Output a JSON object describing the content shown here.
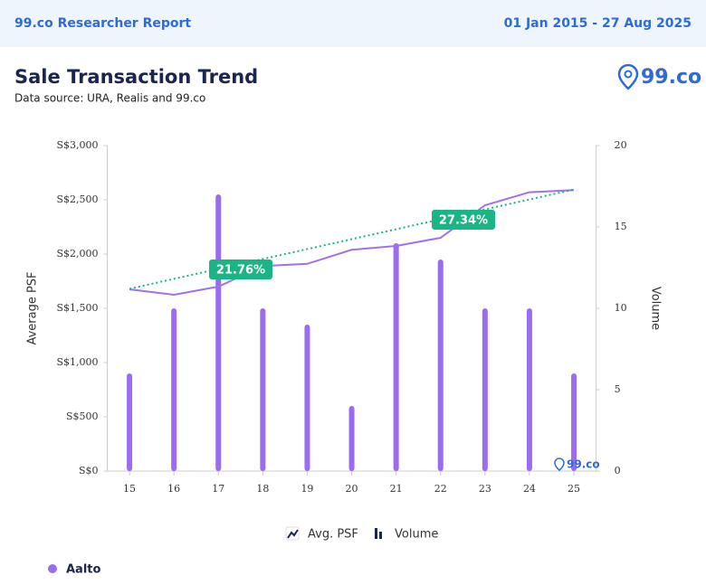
{
  "header": {
    "title": "99.co Researcher Report",
    "date_range": "01 Jan 2015 - 27 Aug 2025"
  },
  "logo": "99.co",
  "chart_data": {
    "type": "bar-line",
    "title": "Sale Transaction Trend",
    "subtitle": "Data source: URA, Realis and 99.co",
    "y_label": "Average PSF",
    "y2_label": "Volume",
    "categories": [
      "15",
      "16",
      "17",
      "18",
      "19",
      "20",
      "21",
      "22",
      "23",
      "24",
      "25"
    ],
    "series": [
      {
        "name": "Avg. PSF",
        "kind": "line",
        "color": "#a070f0",
        "values": [
          1675,
          1625,
          1700,
          1890,
          1910,
          2040,
          2075,
          2150,
          2450,
          2570,
          2590
        ]
      },
      {
        "name": "Volume",
        "kind": "bar",
        "axis": "y2",
        "color": "#9b6cf0",
        "values": [
          6,
          10,
          17,
          10,
          9,
          4,
          14,
          13,
          10,
          10,
          6
        ]
      }
    ],
    "trend": {
      "color": "#1bb585",
      "values": [
        1680,
        2595
      ]
    },
    "annotations": [
      "21.76%",
      "27.34%"
    ],
    "ylim": [
      0,
      3000
    ],
    "yticks": [
      {
        "value": 0,
        "label": "S$0"
      },
      {
        "value": 500,
        "label": "S$500"
      },
      {
        "value": 1000,
        "label": "S$1,000"
      },
      {
        "value": 1500,
        "label": "S$1,500"
      },
      {
        "value": 2000,
        "label": "S$2,000"
      },
      {
        "value": 2500,
        "label": "S$2,500"
      },
      {
        "value": 3000,
        "label": "S$3,000"
      }
    ],
    "y2lim": [
      0,
      20
    ],
    "y2ticks": [
      0,
      5,
      10,
      15,
      20
    ],
    "grid": false,
    "watermark": "99.co",
    "project": {
      "name": "Aalto",
      "color": "#9b6cf0"
    }
  }
}
